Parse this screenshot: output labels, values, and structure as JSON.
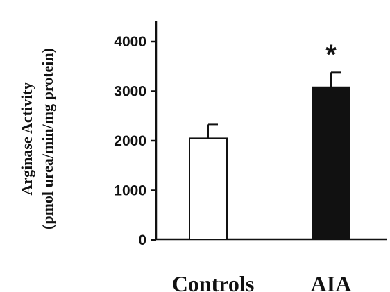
{
  "chart_data": {
    "type": "bar",
    "ylabel": [
      "Arginase Activity",
      "(pmol urea/min/mg protein)"
    ],
    "categories": [
      "Controls",
      "AIA"
    ],
    "values": [
      2050,
      3080
    ],
    "errors": [
      280,
      300
    ],
    "bar_colors": [
      "#ffffff",
      "#111111"
    ],
    "bar_edge_color": "#111111",
    "ylim": [
      0,
      4500
    ],
    "yticks": [
      0,
      1000,
      2000,
      3000,
      4000
    ],
    "ytick_labels": [
      "0",
      "1000",
      "2000",
      "3000",
      "4000"
    ],
    "annotations": [
      {
        "category": "AIA",
        "text": "*"
      }
    ],
    "grid": false,
    "legend": "none"
  }
}
